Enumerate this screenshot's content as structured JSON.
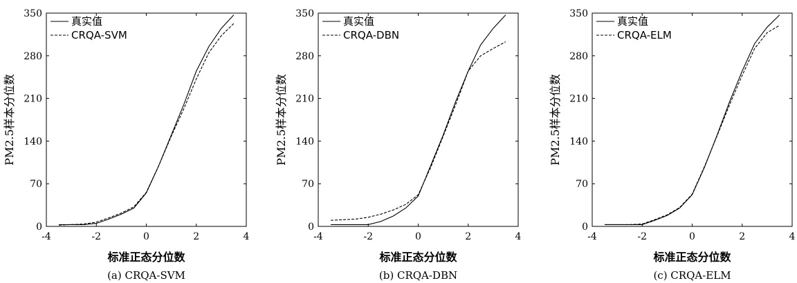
{
  "chart_data": [
    {
      "type": "line",
      "panel": "(a) CRQA-SVM",
      "xlabel": "标准正态分位数",
      "ylabel": "PM2.5样本分位数",
      "xlim": [
        -4,
        4
      ],
      "ylim": [
        0,
        350
      ],
      "xticks": [
        -4,
        -2,
        0,
        2,
        4
      ],
      "yticks": [
        0,
        70,
        140,
        210,
        280,
        350
      ],
      "legend_position": "top-left",
      "series": [
        {
          "name": "真实值",
          "style": "solid",
          "x": [
            -3.5,
            -2.5,
            -2.0,
            -1.5,
            -1.0,
            -0.5,
            0.0,
            0.5,
            1.0,
            1.5,
            2.0,
            2.5,
            3.0,
            3.5
          ],
          "y": [
            3,
            3,
            5,
            12,
            20,
            30,
            55,
            100,
            150,
            200,
            255,
            295,
            325,
            347
          ]
        },
        {
          "name": "CRQA-SVM",
          "style": "dashed",
          "x": [
            -3.5,
            -2.5,
            -2.0,
            -1.5,
            -1.0,
            -0.5,
            0.0,
            0.5,
            1.0,
            1.5,
            2.0,
            2.5,
            3.0,
            3.5
          ],
          "y": [
            2,
            4,
            7,
            14,
            22,
            32,
            56,
            100,
            148,
            193,
            242,
            285,
            313,
            333
          ]
        }
      ]
    },
    {
      "type": "line",
      "panel": "(b) CRQA-DBN",
      "xlabel": "标准正态分位数",
      "ylabel": "PM2.5样本分位数",
      "xlim": [
        -4,
        4
      ],
      "ylim": [
        0,
        350
      ],
      "xticks": [
        -4,
        -2,
        0,
        2,
        4
      ],
      "yticks": [
        0,
        70,
        140,
        210,
        280,
        350
      ],
      "legend_position": "top-left",
      "series": [
        {
          "name": "真实值",
          "style": "solid",
          "x": [
            -3.5,
            -2.5,
            -2.0,
            -1.5,
            -1.0,
            -0.5,
            0.0,
            0.5,
            1.0,
            1.5,
            2.0,
            2.5,
            3.0,
            3.5
          ],
          "y": [
            3,
            3,
            3,
            8,
            17,
            30,
            50,
            100,
            150,
            205,
            255,
            298,
            325,
            347
          ]
        },
        {
          "name": "CRQA-DBN",
          "style": "dashed",
          "x": [
            -3.5,
            -2.5,
            -2.0,
            -1.5,
            -1.0,
            -0.5,
            0.0,
            0.5,
            1.0,
            1.5,
            2.0,
            2.5,
            3.0,
            3.5
          ],
          "y": [
            10,
            12,
            15,
            20,
            27,
            36,
            52,
            97,
            148,
            200,
            255,
            280,
            292,
            303
          ]
        }
      ]
    },
    {
      "type": "line",
      "panel": "(c) CRQA-ELM",
      "xlabel": "标准正态分位数",
      "ylabel": "PM2.5样本分位数",
      "xlim": [
        -4,
        4
      ],
      "ylim": [
        0,
        350
      ],
      "xticks": [
        -4,
        -2,
        0,
        2,
        4
      ],
      "yticks": [
        0,
        70,
        140,
        210,
        280,
        350
      ],
      "legend_position": "top-left",
      "series": [
        {
          "name": "真实值",
          "style": "solid",
          "x": [
            -3.5,
            -2.5,
            -2.0,
            -1.5,
            -1.0,
            -0.5,
            0.0,
            0.5,
            1.0,
            1.5,
            2.0,
            2.5,
            3.0,
            3.5
          ],
          "y": [
            3,
            3,
            3,
            10,
            18,
            30,
            52,
            98,
            150,
            205,
            255,
            300,
            327,
            347
          ]
        },
        {
          "name": "CRQA-ELM",
          "style": "dashed",
          "x": [
            -3.5,
            -2.5,
            -2.0,
            -1.5,
            -1.0,
            -0.5,
            0.0,
            0.5,
            1.0,
            1.5,
            2.0,
            2.5,
            3.0,
            3.5
          ],
          "y": [
            3,
            3,
            4,
            11,
            19,
            31,
            53,
            99,
            149,
            200,
            248,
            292,
            318,
            330
          ]
        }
      ]
    }
  ]
}
